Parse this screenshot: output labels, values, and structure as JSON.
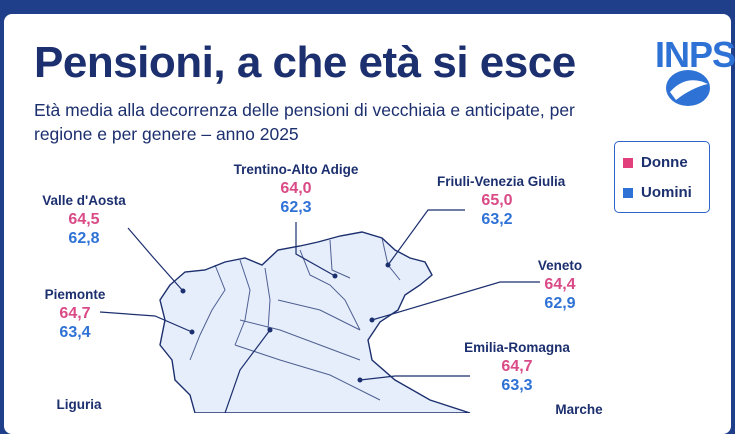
{
  "title": "Pensioni, a che età si esce",
  "subtitle": "Età media alla decorrenza delle pensioni di vecchiaia e anticipate, per regione e per genere – anno 2025",
  "logo": {
    "text": "INPS"
  },
  "legend": [
    {
      "label": "Donne",
      "color": "#e2407d"
    },
    {
      "label": "Uomini",
      "color": "#2f72d6"
    }
  ],
  "colors": {
    "donne": "#d94a86",
    "uomini": "#2f72d6",
    "map_fill": "#e6eefc",
    "map_stroke": "#1c2f6e",
    "navy": "#1c2f6e"
  },
  "regions": [
    {
      "name": "Valle d'Aosta",
      "donne": "64,5",
      "uomini": "62,8"
    },
    {
      "name": "Trentino-Alto Adige",
      "donne": "64,0",
      "uomini": "62,3"
    },
    {
      "name": "Friuli-Venezia Giulia",
      "donne": "65,0",
      "uomini": "63,2"
    },
    {
      "name": "Veneto",
      "donne": "64,4",
      "uomini": "62,9"
    },
    {
      "name": "Piemonte",
      "donne": "64,7",
      "uomini": "63,4"
    },
    {
      "name": "Emilia-Romagna",
      "donne": "64,7",
      "uomini": "63,3"
    },
    {
      "name": "Liguria",
      "donne": "",
      "uomini": ""
    },
    {
      "name": "Marche",
      "donne": "",
      "uomini": ""
    }
  ]
}
